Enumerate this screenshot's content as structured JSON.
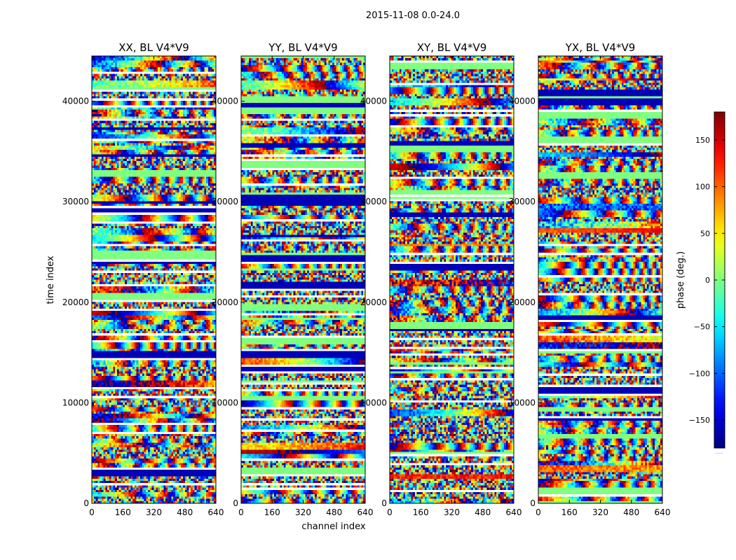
{
  "figure": {
    "suptitle": "2015-11-08 0.0-24.0",
    "xlabel": "channel index",
    "ylabel": "time index",
    "colorbar_label": "phase (deg.)",
    "colorbar_footnote": "......"
  },
  "chart_data": {
    "type": "heatmap",
    "panels": [
      {
        "title": "XX, BL V4*V9",
        "seed": 11
      },
      {
        "title": "YY, BL V4*V9",
        "seed": 23
      },
      {
        "title": "XY, BL V4*V9",
        "seed": 37
      },
      {
        "title": "YX, BL V4*V9",
        "seed": 53
      }
    ],
    "xlim": [
      0,
      640
    ],
    "ylim": [
      0,
      44500
    ],
    "xticks": [
      0,
      160,
      320,
      480,
      640
    ],
    "yticks": [
      0,
      10000,
      20000,
      30000,
      40000
    ],
    "colorbar": {
      "min": -180,
      "max": 180,
      "ticks": [
        -150,
        -100,
        -50,
        0,
        50,
        100,
        150
      ],
      "colormap": "jet"
    }
  }
}
